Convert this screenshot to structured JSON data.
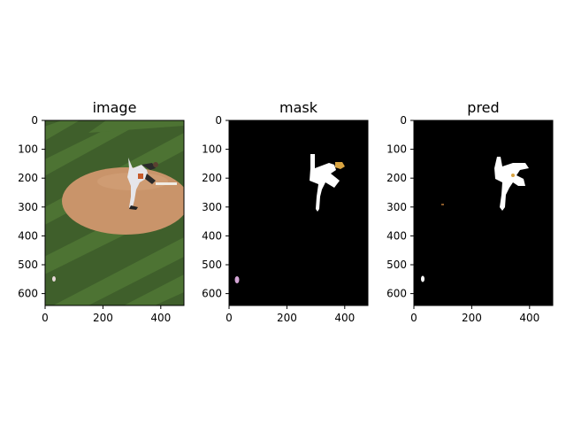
{
  "figure": {
    "panels": [
      {
        "title": "image",
        "content": "photo",
        "x_ticks": [
          "0",
          "200",
          "400"
        ],
        "y_ticks": [
          "0",
          "100",
          "200",
          "300",
          "400",
          "500",
          "600"
        ]
      },
      {
        "title": "mask",
        "content": "mask",
        "x_ticks": [
          "0",
          "200",
          "400"
        ],
        "y_ticks": [
          "0",
          "100",
          "200",
          "300",
          "400",
          "500",
          "600"
        ]
      },
      {
        "title": "pred",
        "content": "pred",
        "x_ticks": [
          "0",
          "200",
          "400"
        ],
        "y_ticks": [
          "0",
          "100",
          "200",
          "300",
          "400",
          "500",
          "600"
        ]
      }
    ],
    "colors": {
      "field_green": "#3f5f2b",
      "field_stripe": "#527a36",
      "dirt_mound": "#c9946a",
      "mask_background": "#000000",
      "person_mask": "#ffffff",
      "glove_mask": "#d9a441",
      "ball_mask": "#d4a6d6",
      "pred_ball": "#ffffff",
      "pred_noise": "#8a5a2a"
    }
  }
}
